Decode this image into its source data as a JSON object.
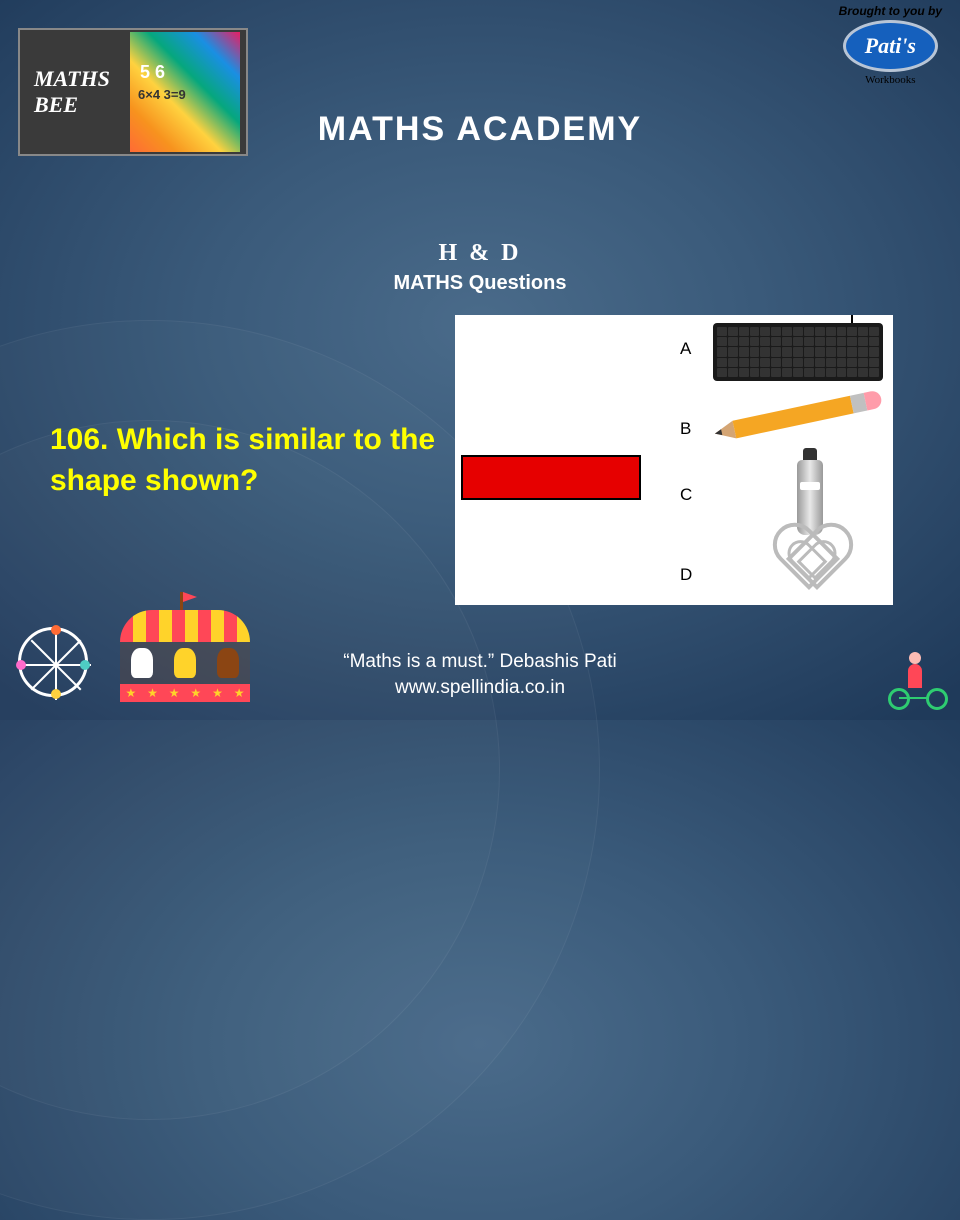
{
  "badge": {
    "line1": "MATHS",
    "line2": "BEE"
  },
  "sponsor": {
    "top": "Brought to you by",
    "logo": "Pati's",
    "bottom": "Workbooks"
  },
  "title": "MATHS  ACADEMY",
  "subtitle1": "H & D",
  "subtitle2": "MATHS  Questions",
  "question": {
    "number": "106.",
    "text": "Which is similar to the shape shown?"
  },
  "options": {
    "a": "A",
    "b": "B",
    "c": "C",
    "d": "D",
    "reference_shape": {
      "type": "rectangle",
      "fill": "#e60000",
      "border": "#000000"
    },
    "items": [
      {
        "label": "A",
        "object": "keyboard"
      },
      {
        "label": "B",
        "object": "pencil"
      },
      {
        "label": "C",
        "object": "bottle"
      },
      {
        "label": "D",
        "object": "heart-cookie-cutter"
      }
    ]
  },
  "footer": {
    "quote": "“Maths is a must.”  Debashis Pati",
    "url": "www.spellindia.co.in"
  },
  "colors": {
    "background_center": "#4a6b8a",
    "background_edge": "#1f3a5a",
    "question_text": "#ffff00",
    "title_text": "#ffffff",
    "sponsor_logo": "#1560bd"
  }
}
